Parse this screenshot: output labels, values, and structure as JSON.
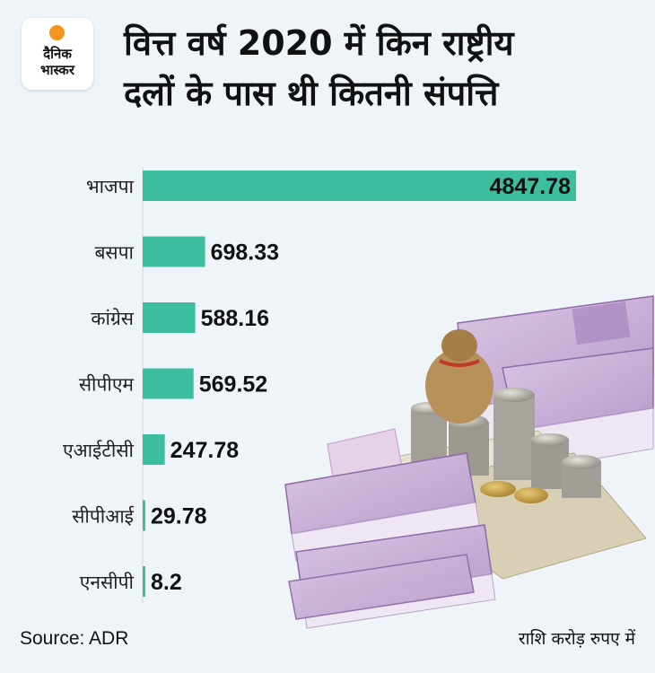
{
  "logo": {
    "line1": "दैनिक",
    "line2": "भास्कर"
  },
  "title_lines": [
    "वित्त वर्ष 2020 में किन राष्ट्रीय",
    "दलों के पास थी कितनी संपत्ति"
  ],
  "source": "Source: ADR",
  "unit_note": "राशि करोड़ रुपए में",
  "colors": {
    "bar_main": "#3dbf9f",
    "bar_other": "#3dbf9f",
    "background": "#eef4f8",
    "logo_sun": "#f7941d"
  },
  "chart_data": {
    "type": "bar",
    "orientation": "horizontal",
    "title": "वित्त वर्ष 2020 में किन राष्ट्रीय दलों के पास थी कितनी संपत्ति",
    "categories": [
      "भाजपा",
      "बसपा",
      "कांग्रेस",
      "सीपीएम",
      "एआईटीसी",
      "सीपीआई",
      "एनसीपी"
    ],
    "values": [
      4847.78,
      698.33,
      588.16,
      569.52,
      247.78,
      29.78,
      8.2
    ],
    "value_labels": [
      "4847.78",
      "698.33",
      "588.16",
      "569.52",
      "247.78",
      "29.78",
      "8.2"
    ],
    "xlabel": "",
    "ylabel": "",
    "xlim": [
      0,
      4847.78
    ],
    "grid": false,
    "legend": "none"
  }
}
